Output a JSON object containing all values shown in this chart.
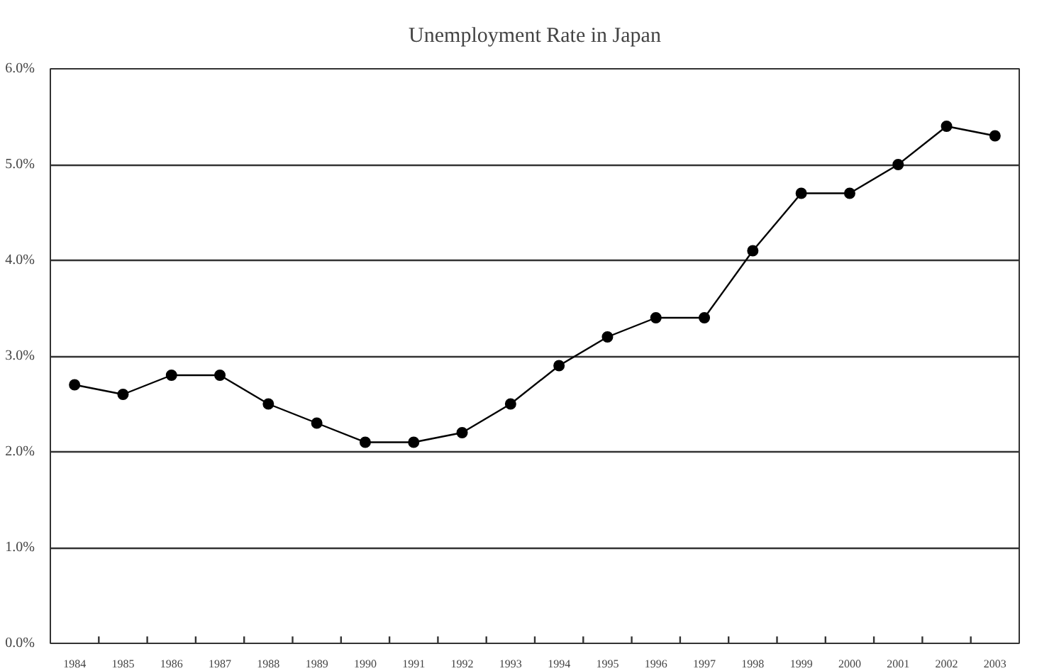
{
  "chart_data": {
    "type": "line",
    "title": "Unemployment Rate in Japan",
    "categories": [
      "1984",
      "1985",
      "1986",
      "1987",
      "1988",
      "1989",
      "1990",
      "1991",
      "1992",
      "1993",
      "1994",
      "1995",
      "1996",
      "1997",
      "1998",
      "1999",
      "2000",
      "2001",
      "2002",
      "2003"
    ],
    "series": [
      {
        "color": "#000000",
        "values": [
          2.7,
          2.6,
          2.8,
          2.8,
          2.5,
          2.3,
          2.1,
          2.1,
          2.2,
          2.5,
          2.9,
          3.2,
          3.4,
          3.4,
          4.1,
          4.7,
          4.7,
          5.0,
          5.4,
          5.3
        ]
      }
    ],
    "ylim": [
      0,
      6
    ],
    "yticks": [
      {
        "value": 0,
        "label": "0.0%"
      },
      {
        "value": 1,
        "label": "1.0%"
      },
      {
        "value": 2,
        "label": "2.0%"
      },
      {
        "value": 3,
        "label": "3.0%"
      },
      {
        "value": 4,
        "label": "4.0%"
      },
      {
        "value": 5,
        "label": "5.0%"
      },
      {
        "value": 6,
        "label": "6.0%"
      }
    ],
    "grid": "y",
    "marker": "circle",
    "line_style": "solid"
  }
}
